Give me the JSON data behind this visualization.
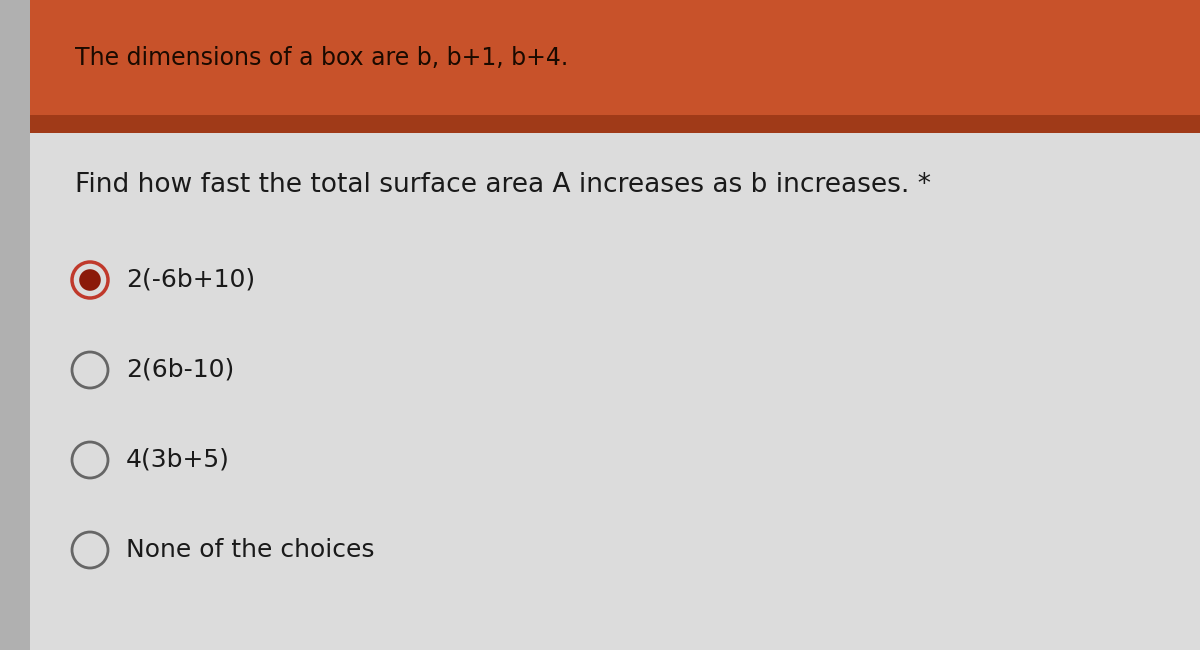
{
  "header_text": "The dimensions of a box are b, b+1, b+4.",
  "question_text": "Find how fast the total surface area A increases as b increases. *",
  "choices": [
    "2(-6b+10)",
    "2(6b-10)",
    "4(3b+5)",
    "None of the choices"
  ],
  "selected_index": 0,
  "header_bg_color": "#c8522a",
  "header_text_color": "#1a0a00",
  "header_stripe_color": "#a03a18",
  "body_bg_color": "#dcdcdc",
  "left_margin_color": "#b0b0b0",
  "question_text_color": "#1a1a1a",
  "choice_text_color": "#1a1a1a",
  "selected_outer_color": "#c0392b",
  "selected_inner_color": "#8b1a0a",
  "unselected_bg_color": "#dcdcdc",
  "circle_edge_color": "#666666",
  "header_font_size": 17,
  "question_font_size": 19,
  "choice_font_size": 18,
  "fig_width": 12,
  "fig_height": 6.5
}
